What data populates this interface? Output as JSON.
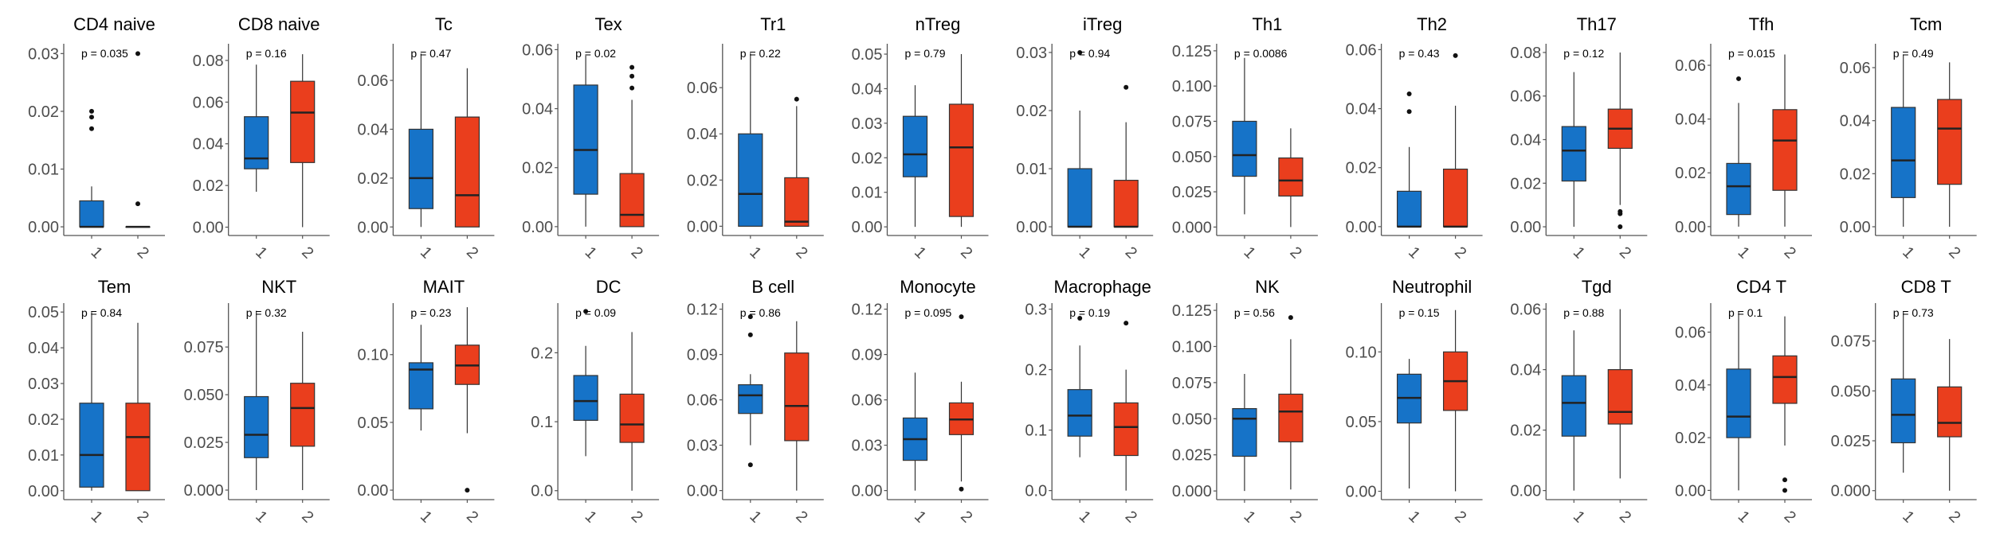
{
  "chart_data": {
    "type": "boxplot",
    "group_labels": [
      "1",
      "2"
    ],
    "group_colors": [
      "#1673c8",
      "#ea3e1d"
    ],
    "panels": [
      {
        "title": "CD4 naive",
        "p": "p = 0.035",
        "ylim": [
          -0.0015,
          0.0317
        ],
        "ticks": [
          0,
          0.01,
          0.02,
          0.03
        ],
        "tick_labels": [
          "0.00",
          "0.01",
          "0.02",
          "0.03"
        ],
        "groups": [
          {
            "min": 0,
            "q1": 0,
            "median": 0,
            "q3": 0.0045,
            "max": 0.007,
            "outliers": [
              0.017,
              0.019,
              0.02
            ]
          },
          {
            "min": 0,
            "q1": 0,
            "median": 0,
            "q3": 0,
            "max": 0,
            "outliers": [
              0.004,
              0.03
            ]
          }
        ]
      },
      {
        "title": "CD8 naive",
        "p": "p = 0.16",
        "ylim": [
          -0.004,
          0.088
        ],
        "ticks": [
          0,
          0.02,
          0.04,
          0.06,
          0.08
        ],
        "tick_labels": [
          "0.00",
          "0.02",
          "0.04",
          "0.06",
          "0.08"
        ],
        "groups": [
          {
            "min": 0.017,
            "q1": 0.028,
            "median": 0.033,
            "q3": 0.053,
            "max": 0.078,
            "outliers": []
          },
          {
            "min": 0,
            "q1": 0.031,
            "median": 0.055,
            "q3": 0.07,
            "max": 0.083,
            "outliers": []
          }
        ]
      },
      {
        "title": "Tc",
        "p": "p = 0.47",
        "ylim": [
          -0.0035,
          0.075
        ],
        "ticks": [
          0,
          0.02,
          0.04,
          0.06
        ],
        "tick_labels": [
          "0.00",
          "0.02",
          "0.04",
          "0.06"
        ],
        "groups": [
          {
            "min": 0,
            "q1": 0.0075,
            "median": 0.02,
            "q3": 0.04,
            "max": 0.071,
            "outliers": []
          },
          {
            "min": 0,
            "q1": 0,
            "median": 0.013,
            "q3": 0.045,
            "max": 0.065,
            "outliers": []
          }
        ]
      },
      {
        "title": "Tex",
        "p": "p = 0.02",
        "ylim": [
          -0.003,
          0.062
        ],
        "ticks": [
          0,
          0.02,
          0.04,
          0.06
        ],
        "tick_labels": [
          "0.00",
          "0.02",
          "0.04",
          "0.06"
        ],
        "groups": [
          {
            "min": 0,
            "q1": 0.011,
            "median": 0.026,
            "q3": 0.048,
            "max": 0.058,
            "outliers": []
          },
          {
            "min": 0,
            "q1": 0,
            "median": 0.004,
            "q3": 0.018,
            "max": 0.043,
            "outliers": [
              0.047,
              0.051,
              0.054
            ]
          }
        ]
      },
      {
        "title": "Tr1",
        "p": "p = 0.22",
        "ylim": [
          -0.004,
          0.079
        ],
        "ticks": [
          0,
          0.02,
          0.04,
          0.06
        ],
        "tick_labels": [
          "0.00",
          "0.02",
          "0.04",
          "0.06"
        ],
        "groups": [
          {
            "min": 0,
            "q1": 0,
            "median": 0.014,
            "q3": 0.04,
            "max": 0.075,
            "outliers": []
          },
          {
            "min": 0,
            "q1": 0,
            "median": 0.002,
            "q3": 0.021,
            "max": 0.052,
            "outliers": [
              0.055
            ]
          }
        ]
      },
      {
        "title": "nTreg",
        "p": "p = 0.79",
        "ylim": [
          -0.0025,
          0.053
        ],
        "ticks": [
          0,
          0.01,
          0.02,
          0.03,
          0.04,
          0.05
        ],
        "tick_labels": [
          "0.00",
          "0.01",
          "0.02",
          "0.03",
          "0.04",
          "0.05"
        ],
        "groups": [
          {
            "min": 0,
            "q1": 0.0145,
            "median": 0.021,
            "q3": 0.032,
            "max": 0.041,
            "outliers": []
          },
          {
            "min": 0,
            "q1": 0.003,
            "median": 0.023,
            "q3": 0.0355,
            "max": 0.05,
            "outliers": []
          }
        ]
      },
      {
        "title": "iTreg",
        "p": "p = 0.94",
        "ylim": [
          -0.0015,
          0.0315
        ],
        "ticks": [
          0,
          0.01,
          0.02,
          0.03
        ],
        "tick_labels": [
          "0.00",
          "0.01",
          "0.02",
          "0.03"
        ],
        "groups": [
          {
            "min": 0,
            "q1": 0,
            "median": 0,
            "q3": 0.01,
            "max": 0.02,
            "outliers": [
              0.03
            ]
          },
          {
            "min": 0,
            "q1": 0,
            "median": 0,
            "q3": 0.008,
            "max": 0.018,
            "outliers": [
              0.024
            ]
          }
        ]
      },
      {
        "title": "Th1",
        "p": "p = 0.0086",
        "ylim": [
          -0.006,
          0.13
        ],
        "ticks": [
          0,
          0.025,
          0.05,
          0.075,
          0.1,
          0.125
        ],
        "tick_labels": [
          "0.000",
          "0.025",
          "0.050",
          "0.075",
          "0.100",
          "0.125"
        ],
        "groups": [
          {
            "min": 0.009,
            "q1": 0.036,
            "median": 0.051,
            "q3": 0.075,
            "max": 0.12,
            "outliers": []
          },
          {
            "min": 0,
            "q1": 0.022,
            "median": 0.033,
            "q3": 0.049,
            "max": 0.07,
            "outliers": []
          }
        ]
      },
      {
        "title": "Th2",
        "p": "p = 0.43",
        "ylim": [
          -0.003,
          0.062
        ],
        "ticks": [
          0,
          0.02,
          0.04,
          0.06
        ],
        "tick_labels": [
          "0.00",
          "0.02",
          "0.04",
          "0.06"
        ],
        "groups": [
          {
            "min": 0,
            "q1": 0,
            "median": 0,
            "q3": 0.012,
            "max": 0.027,
            "outliers": [
              0.039,
              0.045
            ]
          },
          {
            "min": 0,
            "q1": 0,
            "median": 0,
            "q3": 0.0195,
            "max": 0.041,
            "outliers": [
              0.058
            ]
          }
        ]
      },
      {
        "title": "Th17",
        "p": "p = 0.12",
        "ylim": [
          -0.004,
          0.084
        ],
        "ticks": [
          0,
          0.02,
          0.04,
          0.06,
          0.08
        ],
        "tick_labels": [
          "0.00",
          "0.02",
          "0.04",
          "0.06",
          "0.08"
        ],
        "groups": [
          {
            "min": 0,
            "q1": 0.021,
            "median": 0.035,
            "q3": 0.046,
            "max": 0.071,
            "outliers": []
          },
          {
            "min": 0.01,
            "q1": 0.036,
            "median": 0.045,
            "q3": 0.054,
            "max": 0.08,
            "outliers": [
              0,
              0.006,
              0.007
            ]
          }
        ]
      },
      {
        "title": "Tfh",
        "p": "p = 0.015",
        "ylim": [
          -0.0033,
          0.068
        ],
        "ticks": [
          0,
          0.02,
          0.04,
          0.06
        ],
        "tick_labels": [
          "0.00",
          "0.02",
          "0.04",
          "0.06"
        ],
        "groups": [
          {
            "min": 0,
            "q1": 0.0045,
            "median": 0.015,
            "q3": 0.0235,
            "max": 0.046,
            "outliers": [
              0.055
            ]
          },
          {
            "min": 0,
            "q1": 0.0135,
            "median": 0.032,
            "q3": 0.0435,
            "max": 0.064,
            "outliers": []
          }
        ]
      },
      {
        "title": "Tcm",
        "p": "p = 0.49",
        "ylim": [
          -0.0033,
          0.069
        ],
        "ticks": [
          0,
          0.02,
          0.04,
          0.06
        ],
        "tick_labels": [
          "0.00",
          "0.02",
          "0.04",
          "0.06"
        ],
        "groups": [
          {
            "min": 0,
            "q1": 0.011,
            "median": 0.025,
            "q3": 0.045,
            "max": 0.065,
            "outliers": []
          },
          {
            "min": 0,
            "q1": 0.016,
            "median": 0.037,
            "q3": 0.048,
            "max": 0.062,
            "outliers": []
          }
        ]
      },
      {
        "title": "Tem",
        "p": "p = 0.84",
        "ylim": [
          -0.0025,
          0.0525
        ],
        "ticks": [
          0,
          0.01,
          0.02,
          0.03,
          0.04,
          0.05
        ],
        "tick_labels": [
          "0.00",
          "0.01",
          "0.02",
          "0.03",
          "0.04",
          "0.05"
        ],
        "groups": [
          {
            "min": 0,
            "q1": 0.001,
            "median": 0.01,
            "q3": 0.0245,
            "max": 0.05,
            "outliers": []
          },
          {
            "min": 0,
            "q1": 0,
            "median": 0.015,
            "q3": 0.0245,
            "max": 0.047,
            "outliers": []
          }
        ]
      },
      {
        "title": "NKT",
        "p": "p = 0.32",
        "ylim": [
          -0.005,
          0.098
        ],
        "ticks": [
          0,
          0.025,
          0.05,
          0.075
        ],
        "tick_labels": [
          "0.000",
          "0.025",
          "0.050",
          "0.075"
        ],
        "groups": [
          {
            "min": 0,
            "q1": 0.017,
            "median": 0.029,
            "q3": 0.049,
            "max": 0.094,
            "outliers": []
          },
          {
            "min": 0,
            "q1": 0.023,
            "median": 0.043,
            "q3": 0.056,
            "max": 0.083,
            "outliers": []
          }
        ]
      },
      {
        "title": "MAIT",
        "p": "p = 0.23",
        "ylim": [
          -0.007,
          0.138
        ],
        "ticks": [
          0,
          0.05,
          0.1
        ],
        "tick_labels": [
          "0.00",
          "0.05",
          "0.10"
        ],
        "groups": [
          {
            "min": 0.044,
            "q1": 0.06,
            "median": 0.089,
            "q3": 0.094,
            "max": 0.122,
            "outliers": []
          },
          {
            "min": 0.042,
            "q1": 0.078,
            "median": 0.092,
            "q3": 0.107,
            "max": 0.135,
            "outliers": [
              0
            ]
          }
        ]
      },
      {
        "title": "DC",
        "p": "p = 0.09",
        "ylim": [
          -0.013,
          0.272
        ],
        "ticks": [
          0,
          0.1,
          0.2
        ],
        "tick_labels": [
          "0.0",
          "0.1",
          "0.2"
        ],
        "groups": [
          {
            "min": 0.05,
            "q1": 0.102,
            "median": 0.13,
            "q3": 0.167,
            "max": 0.21,
            "outliers": [
              0.26
            ]
          },
          {
            "min": 0,
            "q1": 0.07,
            "median": 0.096,
            "q3": 0.14,
            "max": 0.23,
            "outliers": []
          }
        ]
      },
      {
        "title": "B cell",
        "p": "p = 0.86",
        "ylim": [
          -0.006,
          0.124
        ],
        "ticks": [
          0,
          0.03,
          0.06,
          0.09,
          0.12
        ],
        "tick_labels": [
          "0.00",
          "0.03",
          "0.06",
          "0.09",
          "0.12"
        ],
        "groups": [
          {
            "min": 0.03,
            "q1": 0.051,
            "median": 0.063,
            "q3": 0.07,
            "max": 0.077,
            "outliers": [
              0.017,
              0.103,
              0.115
            ]
          },
          {
            "min": 0,
            "q1": 0.033,
            "median": 0.056,
            "q3": 0.091,
            "max": 0.112,
            "outliers": []
          }
        ]
      },
      {
        "title": "Monocyte",
        "p": "p = 0.095",
        "ylim": [
          -0.006,
          0.124
        ],
        "ticks": [
          0,
          0.03,
          0.06,
          0.09,
          0.12
        ],
        "tick_labels": [
          "0.00",
          "0.03",
          "0.06",
          "0.09",
          "0.12"
        ],
        "groups": [
          {
            "min": 0,
            "q1": 0.02,
            "median": 0.034,
            "q3": 0.048,
            "max": 0.078,
            "outliers": []
          },
          {
            "min": 0.006,
            "q1": 0.037,
            "median": 0.047,
            "q3": 0.058,
            "max": 0.072,
            "outliers": [
              0.001,
              0.115
            ]
          }
        ]
      },
      {
        "title": "Macrophage",
        "p": "p = 0.19",
        "ylim": [
          -0.015,
          0.31
        ],
        "ticks": [
          0,
          0.1,
          0.2,
          0.3
        ],
        "tick_labels": [
          "0.0",
          "0.1",
          "0.2",
          "0.3"
        ],
        "groups": [
          {
            "min": 0.055,
            "q1": 0.09,
            "median": 0.124,
            "q3": 0.167,
            "max": 0.24,
            "outliers": [
              0.285
            ]
          },
          {
            "min": 0,
            "q1": 0.058,
            "median": 0.105,
            "q3": 0.145,
            "max": 0.2,
            "outliers": [
              0.277
            ]
          }
        ]
      },
      {
        "title": "NK",
        "p": "p = 0.56",
        "ylim": [
          -0.006,
          0.13
        ],
        "ticks": [
          0,
          0.025,
          0.05,
          0.075,
          0.1,
          0.125
        ],
        "tick_labels": [
          "0.000",
          "0.025",
          "0.050",
          "0.075",
          "0.100",
          "0.125"
        ],
        "groups": [
          {
            "min": 0,
            "q1": 0.024,
            "median": 0.05,
            "q3": 0.057,
            "max": 0.081,
            "outliers": []
          },
          {
            "min": 0.001,
            "q1": 0.034,
            "median": 0.055,
            "q3": 0.067,
            "max": 0.105,
            "outliers": [
              0.12
            ]
          }
        ]
      },
      {
        "title": "Neutrophil",
        "p": "p = 0.15",
        "ylim": [
          -0.006,
          0.135
        ],
        "ticks": [
          0,
          0.05,
          0.1
        ],
        "tick_labels": [
          "0.00",
          "0.05",
          "0.10"
        ],
        "groups": [
          {
            "min": 0.002,
            "q1": 0.049,
            "median": 0.067,
            "q3": 0.084,
            "max": 0.095,
            "outliers": []
          },
          {
            "min": 0,
            "q1": 0.058,
            "median": 0.079,
            "q3": 0.1,
            "max": 0.13,
            "outliers": []
          }
        ]
      },
      {
        "title": "Tgd",
        "p": "p = 0.88",
        "ylim": [
          -0.003,
          0.062
        ],
        "ticks": [
          0,
          0.02,
          0.04,
          0.06
        ],
        "tick_labels": [
          "0.00",
          "0.02",
          "0.04",
          "0.06"
        ],
        "groups": [
          {
            "min": 0,
            "q1": 0.018,
            "median": 0.029,
            "q3": 0.038,
            "max": 0.053,
            "outliers": []
          },
          {
            "min": 0.004,
            "q1": 0.022,
            "median": 0.026,
            "q3": 0.04,
            "max": 0.06,
            "outliers": []
          }
        ]
      },
      {
        "title": "CD4 T",
        "p": "p = 0.1",
        "ylim": [
          -0.0035,
          0.071
        ],
        "ticks": [
          0,
          0.02,
          0.04,
          0.06
        ],
        "tick_labels": [
          "0.00",
          "0.02",
          "0.04",
          "0.06"
        ],
        "groups": [
          {
            "min": 0,
            "q1": 0.02,
            "median": 0.028,
            "q3": 0.046,
            "max": 0.068,
            "outliers": []
          },
          {
            "min": 0.017,
            "q1": 0.033,
            "median": 0.043,
            "q3": 0.051,
            "max": 0.066,
            "outliers": [
              0,
              0.004
            ]
          }
        ]
      },
      {
        "title": "CD8 T",
        "p": "p = 0.73",
        "ylim": [
          -0.0045,
          0.094
        ],
        "ticks": [
          0,
          0.025,
          0.05,
          0.075
        ],
        "tick_labels": [
          "0.000",
          "0.025",
          "0.050",
          "0.075"
        ],
        "groups": [
          {
            "min": 0.009,
            "q1": 0.024,
            "median": 0.038,
            "q3": 0.056,
            "max": 0.09,
            "outliers": []
          },
          {
            "min": 0,
            "q1": 0.027,
            "median": 0.034,
            "q3": 0.052,
            "max": 0.076,
            "outliers": []
          }
        ]
      }
    ]
  }
}
